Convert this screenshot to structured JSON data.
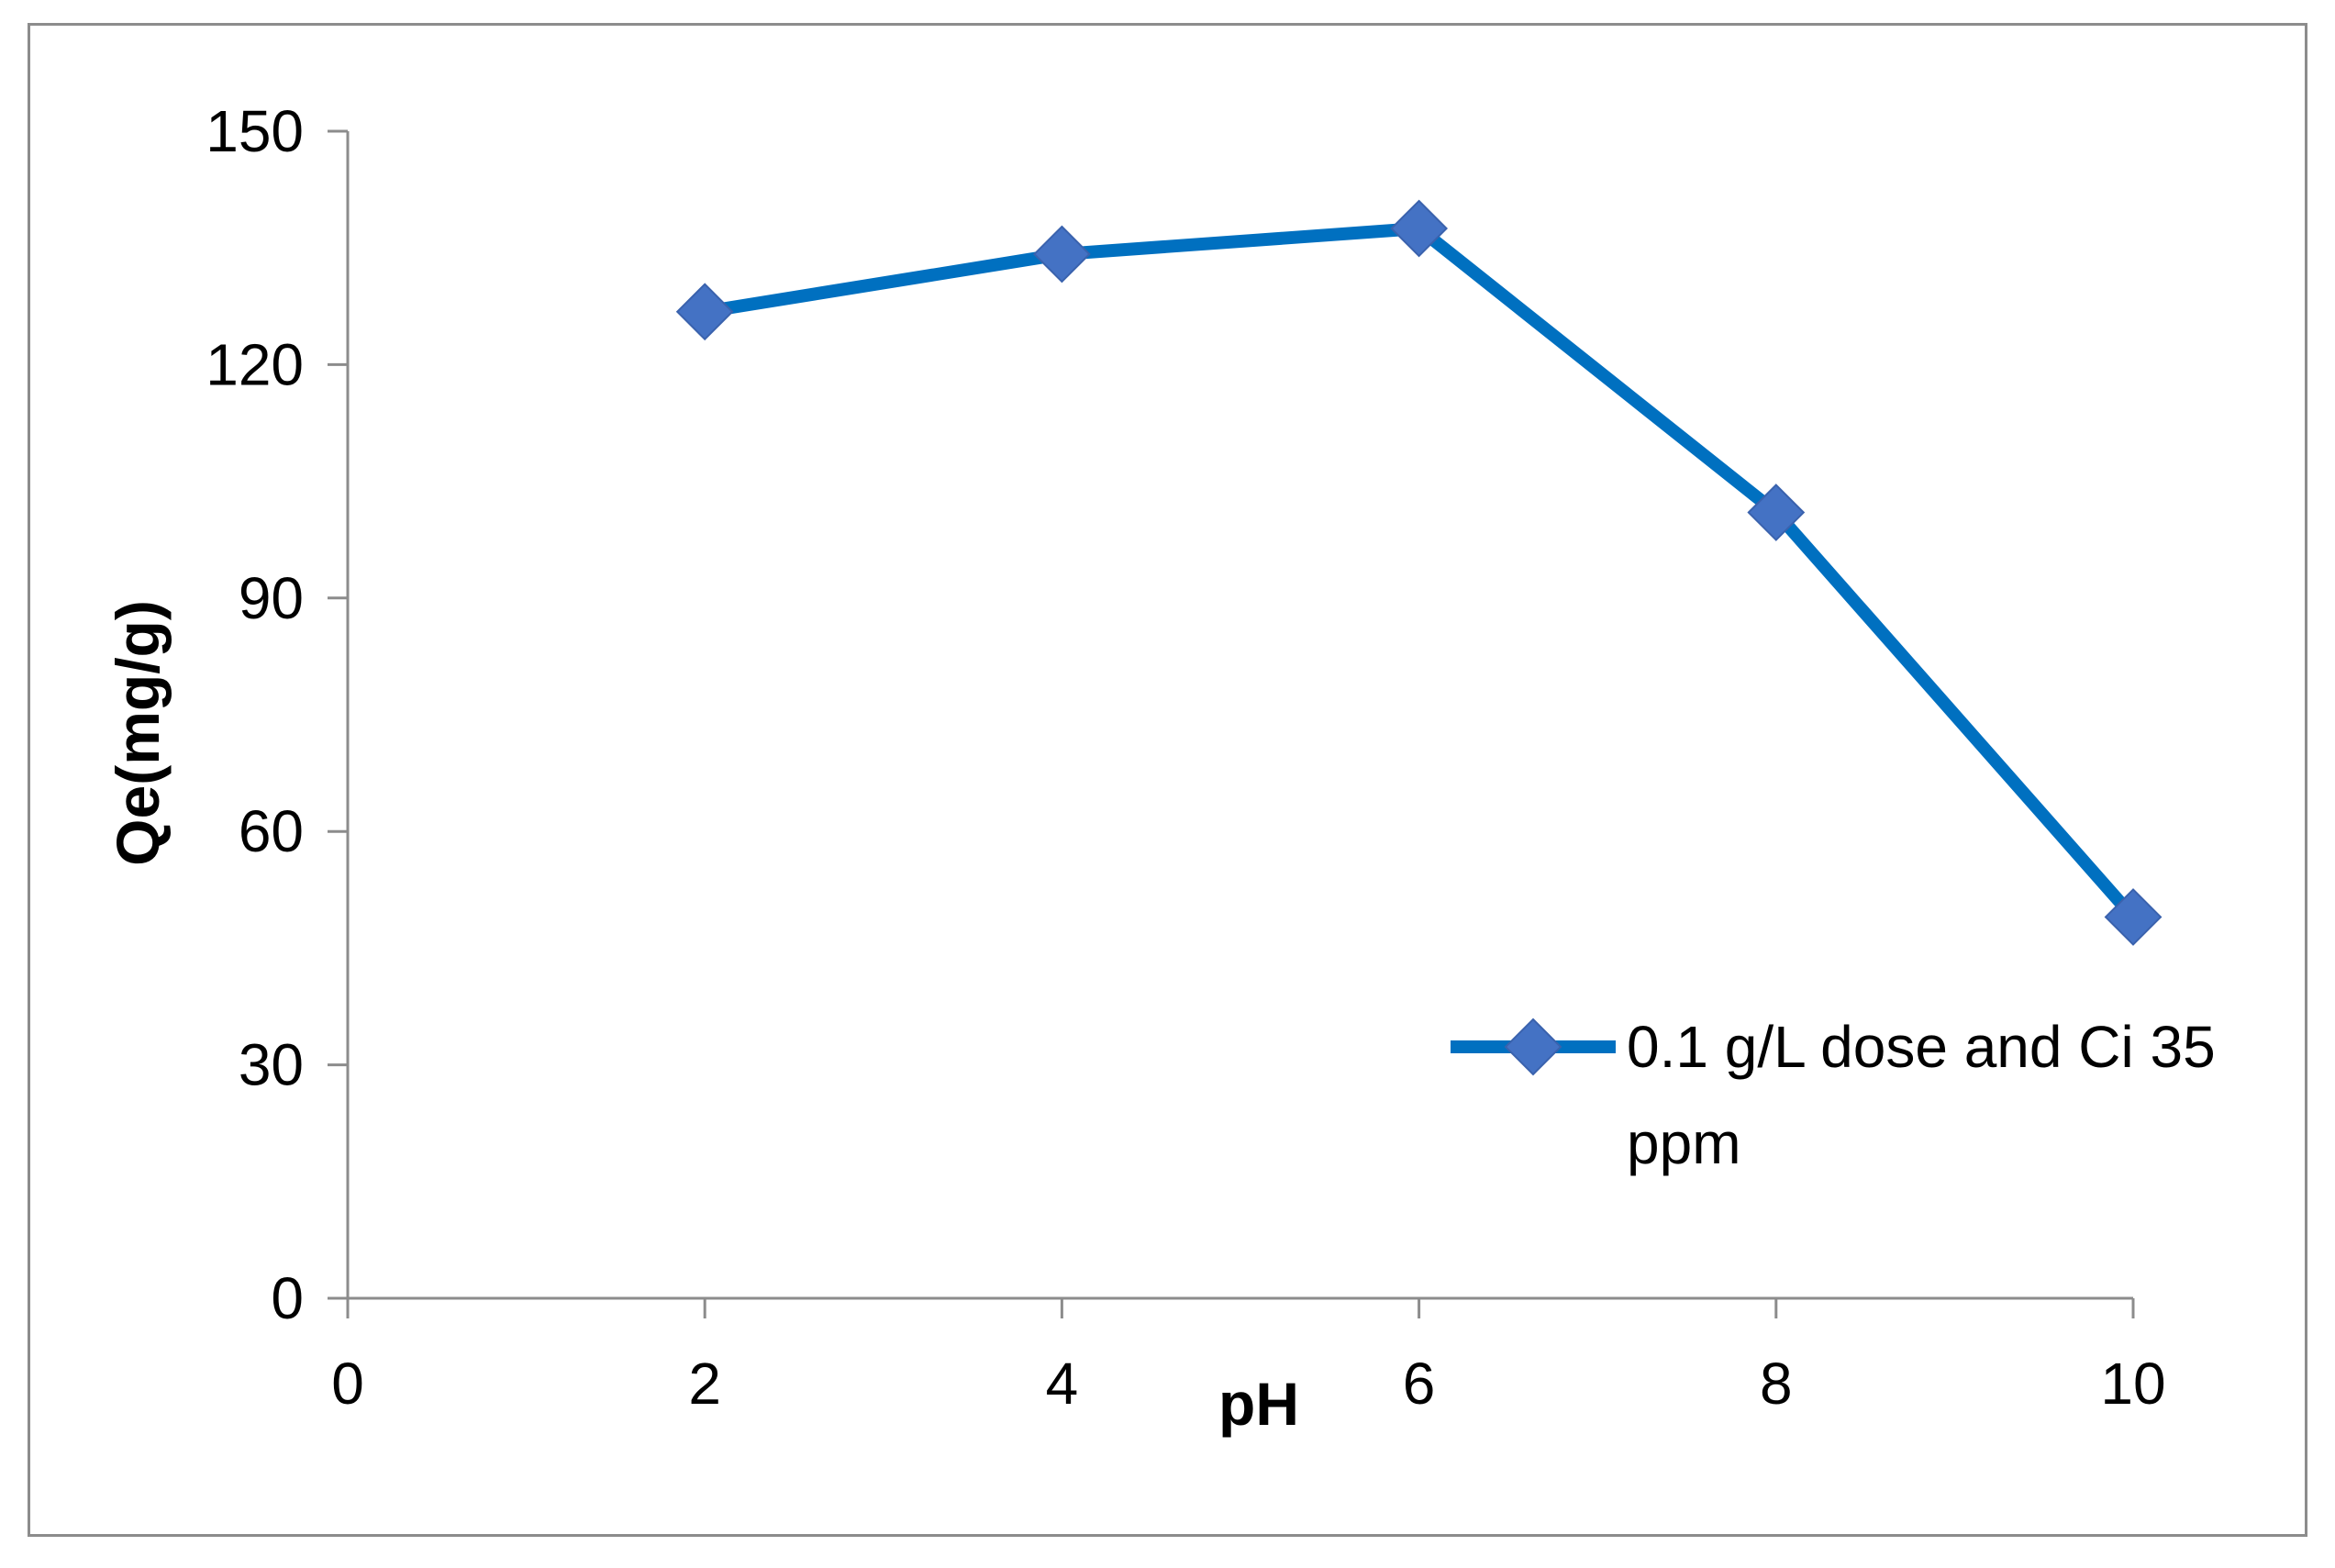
{
  "chart_data": {
    "type": "line",
    "title": "",
    "xlabel": "pH",
    "ylabel": "Qe(mg/g)",
    "xlim": [
      0,
      10
    ],
    "ylim": [
      0,
      150
    ],
    "xticks": [
      0,
      2,
      4,
      6,
      8,
      10
    ],
    "yticks": [
      0,
      30,
      60,
      90,
      120,
      150
    ],
    "xtick_labels": [
      "0",
      "2",
      "4",
      "6",
      "8",
      "10"
    ],
    "ytick_labels": [
      "0",
      "30",
      "60",
      "90",
      "120",
      "150"
    ],
    "grid": false,
    "legend_position": "right",
    "series": [
      {
        "name": "0.1 g/L dose and Ci 35 ppm",
        "name_line1": "0.1 g/L dose and Ci 35",
        "name_line2": "ppm",
        "color": "#0070c0",
        "marker_color": "#4472c4",
        "marker": "diamond",
        "x": [
          2,
          4,
          6,
          8,
          10
        ],
        "y": [
          126.8,
          134.2,
          137.5,
          101,
          49
        ]
      }
    ]
  },
  "colors": {
    "axis": "#8c8c8c",
    "frame": "#8c8c8c",
    "text": "#000000"
  }
}
